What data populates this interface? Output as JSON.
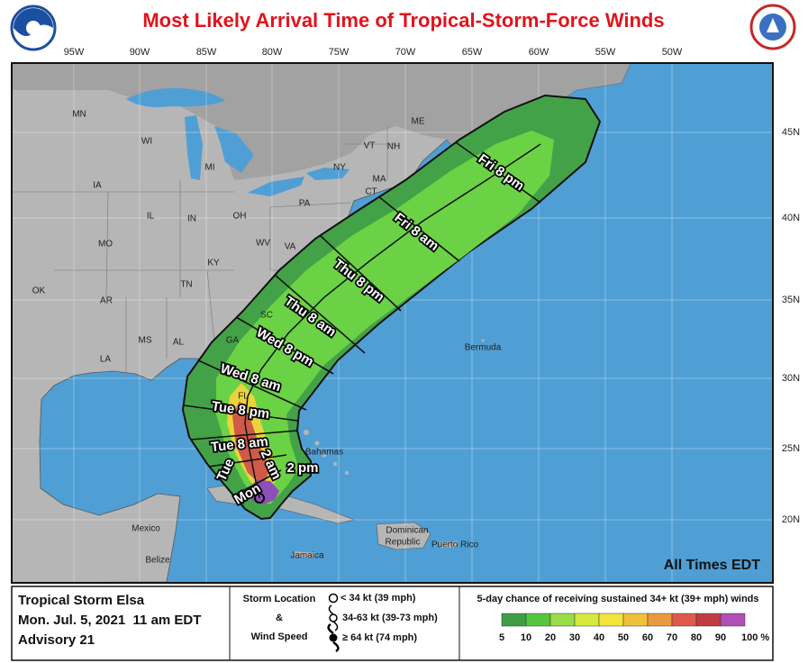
{
  "header": {
    "title": "Most Likely Arrival Time of Tropical-Storm-Force Winds"
  },
  "map": {
    "longitudes": [
      "95W",
      "90W",
      "85W",
      "80W",
      "75W",
      "70W",
      "65W",
      "60W",
      "55W",
      "50W"
    ],
    "latitudes": [
      "45N",
      "40N",
      "35N",
      "30N",
      "25N",
      "20N"
    ],
    "places": [
      "MN",
      "WI",
      "MI",
      "IA",
      "IL",
      "IN",
      "OH",
      "PA",
      "NY",
      "VT",
      "NH",
      "ME",
      "MA",
      "CT",
      "MO",
      "KY",
      "WV",
      "VA",
      "TN",
      "OK",
      "AR",
      "MS",
      "AL",
      "GA",
      "SC",
      "LA",
      "FL",
      "Bermuda",
      "Bahamas",
      "Mexico",
      "Dominican",
      "Republic",
      "Puerto Rico",
      "Jamaica",
      "Belize"
    ],
    "times": [
      "Fri 8 pm",
      "Fri 8 am",
      "Thu 8 pm",
      "Thu 8 am",
      "Wed 8 pm",
      "Wed 8 am",
      "Tue 8 pm",
      "Tue 8 am",
      "Tue",
      "2 am",
      "2 pm",
      "Mon"
    ],
    "note": "All Times EDT"
  },
  "footer": {
    "storm": "Tropical Storm Elsa",
    "issued": "Mon. Jul. 5, 2021  11 am EDT",
    "advisory": "Advisory 21",
    "key": {
      "line1": "Storm Location",
      "line2": "&",
      "line3": "Wind Speed",
      "symbols": [
        "< 34 kt (39 mph)",
        "34-63 kt (39-73 mph)",
        "≥ 64 kt (74 mph)"
      ]
    },
    "scale": {
      "title": "5-day chance of receiving sustained 34+ kt (39+ mph) winds",
      "labels": [
        "5",
        "10",
        "20",
        "30",
        "40",
        "50",
        "60",
        "70",
        "80",
        "90",
        "100 %"
      ],
      "colors": [
        "#3f9e45",
        "#56c43f",
        "#98dd48",
        "#d6e93e",
        "#f2e43b",
        "#efc13a",
        "#ea9a3e",
        "#df5a4b",
        "#c03c43",
        "#b04fb8"
      ]
    }
  }
}
